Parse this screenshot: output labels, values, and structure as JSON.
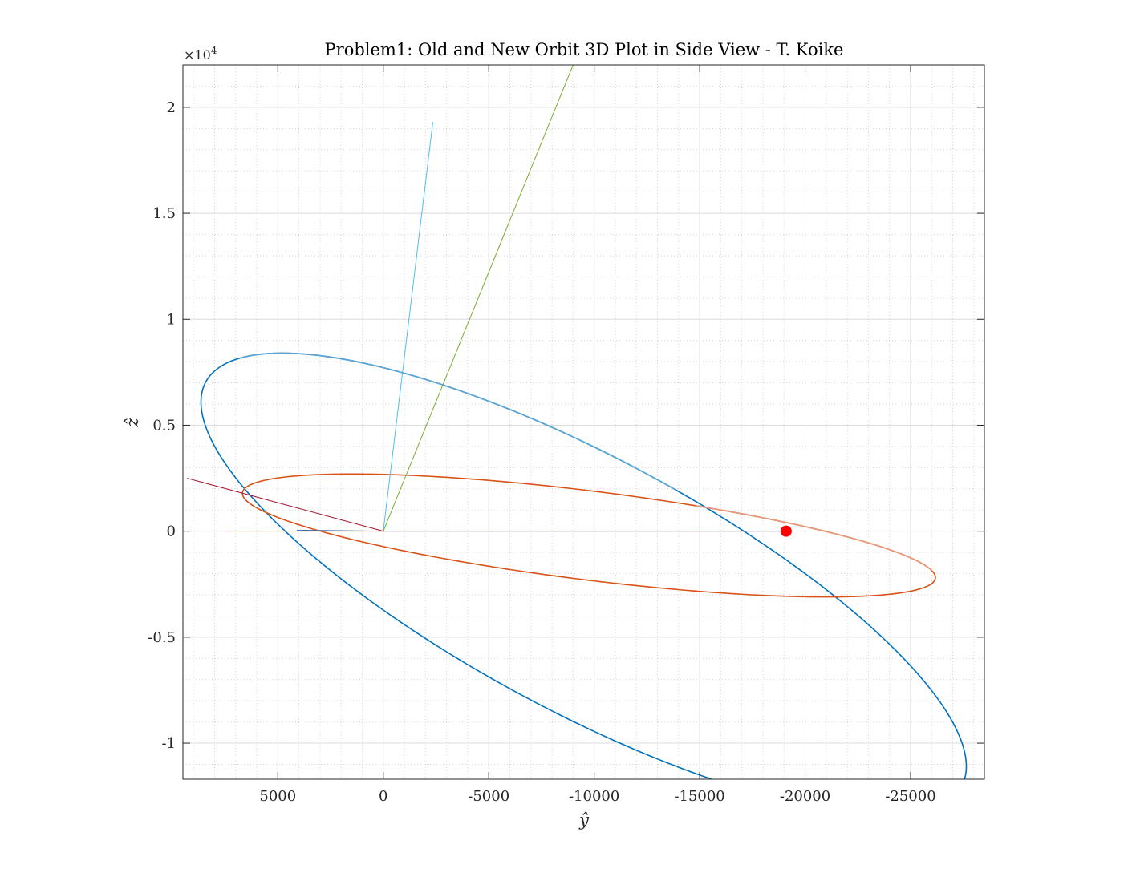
{
  "chart_data": {
    "type": "line",
    "title": "Problem1: Old and New Orbit 3D Plot in Side View - T. Koike",
    "xlabel": "ŷ",
    "ylabel": "ẑ",
    "x_reversed": true,
    "xlim": [
      9500,
      -28500
    ],
    "ylim": [
      -11700,
      22000
    ],
    "y_exponent_label": "×10",
    "y_exponent_power": "4",
    "x_ticks": [
      {
        "value": 5000,
        "label": "5000"
      },
      {
        "value": 0,
        "label": "0"
      },
      {
        "value": -5000,
        "label": "-5000"
      },
      {
        "value": -10000,
        "label": "-10000"
      },
      {
        "value": -15000,
        "label": "-15000"
      },
      {
        "value": -20000,
        "label": "-20000"
      },
      {
        "value": -25000,
        "label": "-25000"
      }
    ],
    "y_ticks": [
      {
        "value": -10000,
        "label": "-1"
      },
      {
        "value": -5000,
        "label": "-0.5"
      },
      {
        "value": 0,
        "label": "0"
      },
      {
        "value": 5000,
        "label": "0.5"
      },
      {
        "value": 10000,
        "label": "1"
      },
      {
        "value": 15000,
        "label": "1.5"
      },
      {
        "value": 20000,
        "label": "2"
      }
    ],
    "grid": "on (major and minor)",
    "series": [
      {
        "kind": "ellipse",
        "color": "#0072BD",
        "fade_color": "#5AA5D6",
        "center": [
          -9500,
          -2500
        ],
        "semi_major": 20300,
        "semi_minor": 6000,
        "tilt_deg": -28,
        "fade_from_deg": 85,
        "fade_to_deg": 163
      },
      {
        "kind": "ellipse",
        "color": "#D95319",
        "fade_color": "#E8997A",
        "center": [
          -9750,
          -200
        ],
        "semi_major": 16550,
        "semi_minor": 2100,
        "tilt_deg": -7,
        "fade_from_deg": 9,
        "fade_to_deg": 73
      },
      {
        "kind": "line",
        "color": "#4DBEEE",
        "points": [
          [
            0,
            0
          ],
          [
            -2350,
            19300
          ]
        ]
      },
      {
        "kind": "line",
        "color": "#77AC30",
        "points": [
          [
            0,
            0
          ],
          [
            -9000,
            22000
          ]
        ]
      },
      {
        "kind": "line",
        "color": "#A2142F",
        "points": [
          [
            0,
            0
          ],
          [
            9300,
            2500
          ]
        ]
      },
      {
        "kind": "line",
        "color": "#7E2F8E",
        "points": [
          [
            0,
            0
          ],
          [
            -19100,
            0
          ]
        ]
      },
      {
        "kind": "line",
        "color": "#EDB120",
        "points": [
          [
            0,
            0
          ],
          [
            7500,
            0
          ]
        ]
      },
      {
        "kind": "line",
        "color": "#4169B0",
        "points": [
          [
            0,
            0
          ],
          [
            4100,
            50
          ]
        ]
      }
    ],
    "marker": {
      "x": -19100,
      "y": 0,
      "color": "#FF0000"
    }
  }
}
